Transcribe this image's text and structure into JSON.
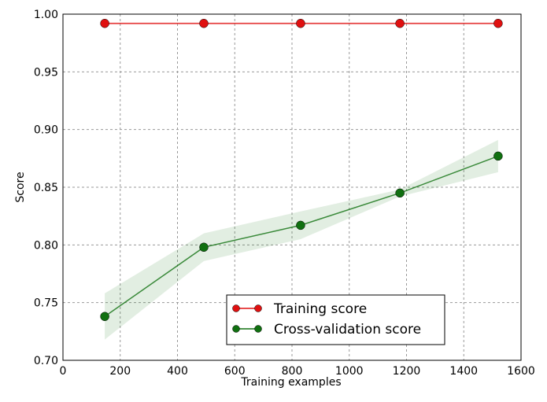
{
  "chart_data": {
    "type": "line",
    "xlabel": "Training examples",
    "ylabel": "Score",
    "x": [
      146,
      492,
      830,
      1177,
      1520
    ],
    "series": [
      {
        "name": "Training score",
        "color": "#e01010",
        "values": [
          0.992,
          0.992,
          0.992,
          0.992,
          0.992
        ],
        "std": [
          0.001,
          0.001,
          0.001,
          0.001,
          0.001
        ]
      },
      {
        "name": "Cross-validation score",
        "color": "#107010",
        "values": [
          0.738,
          0.798,
          0.817,
          0.845,
          0.877
        ],
        "std": [
          0.02,
          0.012,
          0.012,
          0.003,
          0.014
        ]
      }
    ],
    "xlim": [
      0,
      1600
    ],
    "ylim": [
      0.7,
      1.0
    ],
    "xticks": [
      0,
      200,
      400,
      600,
      800,
      1000,
      1200,
      1400,
      1600
    ],
    "yticks": [
      {
        "value": 0.7,
        "label": "0.70"
      },
      {
        "value": 0.75,
        "label": "0.75"
      },
      {
        "value": 0.8,
        "label": "0.80"
      },
      {
        "value": 0.85,
        "label": "0.85"
      },
      {
        "value": 0.9,
        "label": "0.90"
      },
      {
        "value": 0.95,
        "label": "0.95"
      },
      {
        "value": 1.0,
        "label": "1.00"
      }
    ],
    "grid": true,
    "legend": "lower center"
  }
}
